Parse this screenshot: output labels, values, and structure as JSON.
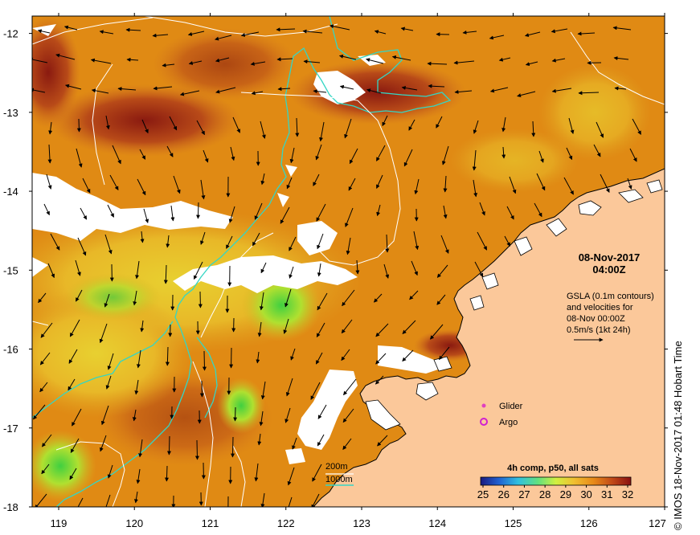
{
  "map": {
    "lon_ticks": [
      "119",
      "120",
      "121",
      "122",
      "123",
      "124",
      "125",
      "126",
      "127"
    ],
    "lat_ticks": [
      "-12",
      "-13",
      "-14",
      "-15",
      "-16",
      "-17",
      "-18"
    ],
    "date": "08-Nov-2017",
    "time": "04:00Z",
    "gsla_lines": [
      "GSLA (0.1m contours)",
      "and velocities for",
      "08-Nov 00:00Z",
      "0.5m/s (1kt 24h)"
    ],
    "legend": {
      "glider": "Glider",
      "argo": "Argo"
    },
    "depth_legend": {
      "d200": "200m",
      "d1000": "1000m"
    },
    "colorbar": {
      "title": "4h comp, p50, all sats",
      "labels": [
        "25",
        "26",
        "27",
        "28",
        "29",
        "30",
        "31",
        "32"
      ]
    },
    "credit": "© IMOS 18-Nov-2017 01:48 Hobart Time",
    "colors": {
      "land": "#fbc89a",
      "ocean_main": "#e08a14",
      "contour_200": "#34d6c4",
      "glider": "#e040c0",
      "argo": "#d020d0"
    }
  }
}
